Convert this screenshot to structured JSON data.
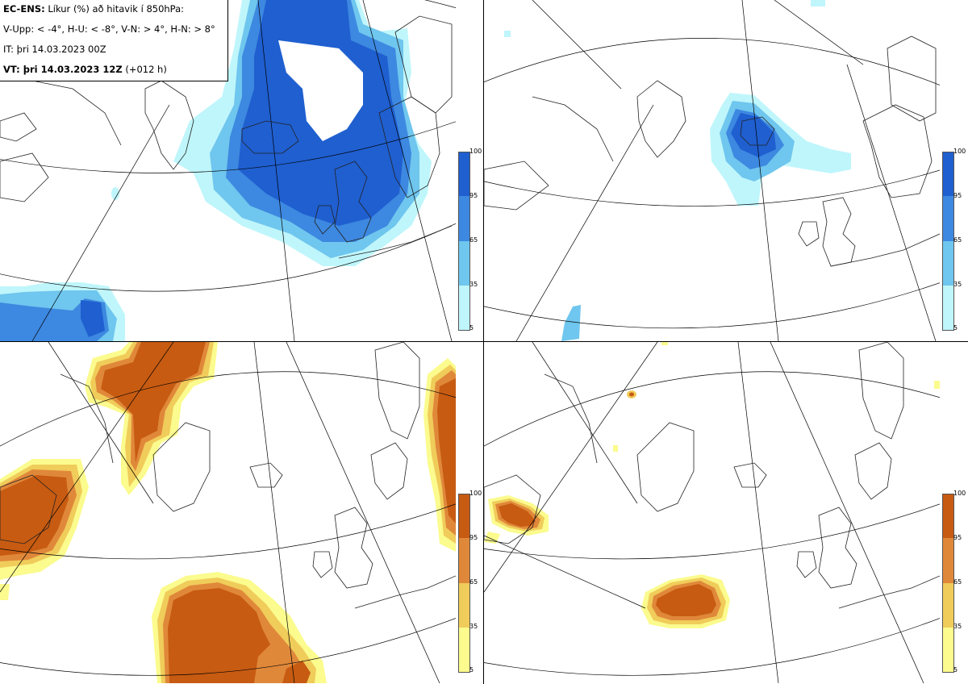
{
  "info": {
    "model": "EC-ENS:",
    "title": "Líkur (%) að hitavik í 850hPa:",
    "legend": "V-Upp: < -4°, H-U: < -8°, V-N: > 4°, H-N: > 8°",
    "init_time": "IT: þri 14.03.2023 00Z",
    "valid_label": "VT: þri 14.03.2023 12Z",
    "lead": "(+012 h)"
  },
  "panels": [
    {
      "id": "top-left",
      "label": "V-Upp",
      "colormap": "blue"
    },
    {
      "id": "top-right",
      "label": "H-U",
      "colormap": "blue"
    },
    {
      "id": "bottom-left",
      "label": "V-N",
      "colormap": "orange"
    },
    {
      "id": "bottom-right",
      "label": "H-N",
      "colormap": "orange"
    }
  ],
  "colorbar": {
    "ticks": [
      "100",
      "95",
      "65",
      "35",
      "5"
    ],
    "blue_colors": [
      "#1f5fd0",
      "#3d88e0",
      "#6fc6ee",
      "#bff6fb"
    ],
    "orange_colors": [
      "#c75b12",
      "#e0883a",
      "#f0cc5a",
      "#fbfb8e"
    ]
  }
}
